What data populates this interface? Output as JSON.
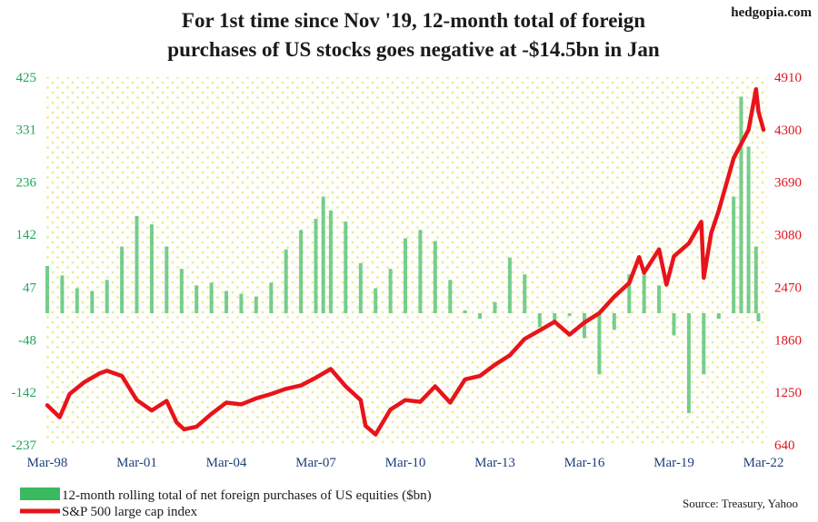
{
  "watermark": "hedgopia.com",
  "source": "Source: Treasury, Yahoo",
  "colors": {
    "bars": "#3cb95f",
    "line": "#e8141b",
    "left_axis": "#22a55a",
    "right_axis": "#e0141b",
    "x_axis": "#1f3f7a",
    "plot_dots": "#e9eb95"
  },
  "chart_data": {
    "type": "bar+line",
    "title": "For 1st time since Nov '19, 12-month total of foreign purchases of US stocks goes negative at -$14.5bn in Jan",
    "title_lines": [
      "For 1st time since Nov '19, 12-month total of foreign",
      "purchases of US stocks goes negative at -$14.5bn in Jan"
    ],
    "x_range": [
      "1998-03",
      "2022-03"
    ],
    "x_ticks": [
      "Mar-98",
      "Mar-01",
      "Mar-04",
      "Mar-07",
      "Mar-10",
      "Mar-13",
      "Mar-16",
      "Mar-19",
      "Mar-22"
    ],
    "y_left": {
      "ticks": [
        "425",
        "331",
        "236",
        "142",
        "47",
        "-48",
        "-142",
        "-237"
      ],
      "range": [
        -237,
        425
      ]
    },
    "y_right": {
      "ticks": [
        "4910",
        "4300",
        "3690",
        "3080",
        "2470",
        "1860",
        "1250",
        "640"
      ],
      "range": [
        640,
        4910
      ]
    },
    "legend_position": "bottom-left",
    "series": [
      {
        "name": "12-month rolling total of net foreign purchases of US equities ($bn)",
        "type": "bar",
        "axis": "left",
        "points": [
          [
            "1998-03",
            85
          ],
          [
            "1998-09",
            68
          ],
          [
            "1999-03",
            45
          ],
          [
            "1999-09",
            40
          ],
          [
            "2000-03",
            60
          ],
          [
            "2000-09",
            120
          ],
          [
            "2001-03",
            175
          ],
          [
            "2001-09",
            160
          ],
          [
            "2002-03",
            120
          ],
          [
            "2002-09",
            80
          ],
          [
            "2003-03",
            50
          ],
          [
            "2003-09",
            55
          ],
          [
            "2004-03",
            40
          ],
          [
            "2004-09",
            35
          ],
          [
            "2005-03",
            30
          ],
          [
            "2005-09",
            55
          ],
          [
            "2006-03",
            115
          ],
          [
            "2006-09",
            150
          ],
          [
            "2007-03",
            170
          ],
          [
            "2007-06",
            210
          ],
          [
            "2007-09",
            185
          ],
          [
            "2008-03",
            165
          ],
          [
            "2008-09",
            90
          ],
          [
            "2009-03",
            45
          ],
          [
            "2009-09",
            80
          ],
          [
            "2010-03",
            135
          ],
          [
            "2010-09",
            150
          ],
          [
            "2011-03",
            130
          ],
          [
            "2011-09",
            60
          ],
          [
            "2012-03",
            5
          ],
          [
            "2012-09",
            -10
          ],
          [
            "2013-03",
            20
          ],
          [
            "2013-09",
            100
          ],
          [
            "2014-03",
            70
          ],
          [
            "2014-09",
            -25
          ],
          [
            "2015-03",
            -20
          ],
          [
            "2015-09",
            -5
          ],
          [
            "2016-03",
            -45
          ],
          [
            "2016-09",
            -110
          ],
          [
            "2017-03",
            -30
          ],
          [
            "2017-09",
            70
          ],
          [
            "2018-03",
            80
          ],
          [
            "2018-09",
            50
          ],
          [
            "2019-03",
            -40
          ],
          [
            "2019-09",
            -180
          ],
          [
            "2020-03",
            -110
          ],
          [
            "2020-09",
            -10
          ],
          [
            "2021-03",
            210
          ],
          [
            "2021-06",
            390
          ],
          [
            "2021-09",
            300
          ],
          [
            "2021-12",
            120
          ],
          [
            "2022-01",
            -14.5
          ]
        ]
      },
      {
        "name": "S&P 500 large cap index",
        "type": "line",
        "axis": "right",
        "points": [
          [
            "1998-03",
            1100
          ],
          [
            "1998-08",
            960
          ],
          [
            "1998-12",
            1230
          ],
          [
            "1999-06",
            1370
          ],
          [
            "1999-12",
            1470
          ],
          [
            "2000-03",
            1500
          ],
          [
            "2000-09",
            1440
          ],
          [
            "2001-03",
            1160
          ],
          [
            "2001-09",
            1040
          ],
          [
            "2002-03",
            1150
          ],
          [
            "2002-07",
            900
          ],
          [
            "2002-10",
            820
          ],
          [
            "2003-03",
            850
          ],
          [
            "2003-09",
            1000
          ],
          [
            "2004-03",
            1130
          ],
          [
            "2004-09",
            1110
          ],
          [
            "2005-03",
            1180
          ],
          [
            "2005-09",
            1230
          ],
          [
            "2006-03",
            1290
          ],
          [
            "2006-09",
            1330
          ],
          [
            "2007-03",
            1420
          ],
          [
            "2007-09",
            1520
          ],
          [
            "2008-03",
            1320
          ],
          [
            "2008-09",
            1160
          ],
          [
            "2008-11",
            860
          ],
          [
            "2009-03",
            760
          ],
          [
            "2009-09",
            1050
          ],
          [
            "2010-03",
            1160
          ],
          [
            "2010-09",
            1140
          ],
          [
            "2011-03",
            1320
          ],
          [
            "2011-09",
            1130
          ],
          [
            "2012-03",
            1400
          ],
          [
            "2012-09",
            1440
          ],
          [
            "2013-03",
            1570
          ],
          [
            "2013-09",
            1680
          ],
          [
            "2014-03",
            1870
          ],
          [
            "2014-09",
            1970
          ],
          [
            "2015-03",
            2070
          ],
          [
            "2015-09",
            1920
          ],
          [
            "2016-03",
            2060
          ],
          [
            "2016-09",
            2170
          ],
          [
            "2017-03",
            2360
          ],
          [
            "2017-09",
            2520
          ],
          [
            "2018-01",
            2820
          ],
          [
            "2018-03",
            2640
          ],
          [
            "2018-09",
            2910
          ],
          [
            "2018-12",
            2500
          ],
          [
            "2019-03",
            2830
          ],
          [
            "2019-09",
            2980
          ],
          [
            "2020-02",
            3230
          ],
          [
            "2020-03",
            2580
          ],
          [
            "2020-06",
            3100
          ],
          [
            "2020-09",
            3360
          ],
          [
            "2021-03",
            3970
          ],
          [
            "2021-09",
            4300
          ],
          [
            "2021-12",
            4770
          ],
          [
            "2022-01",
            4510
          ],
          [
            "2022-03",
            4300
          ]
        ]
      }
    ]
  }
}
